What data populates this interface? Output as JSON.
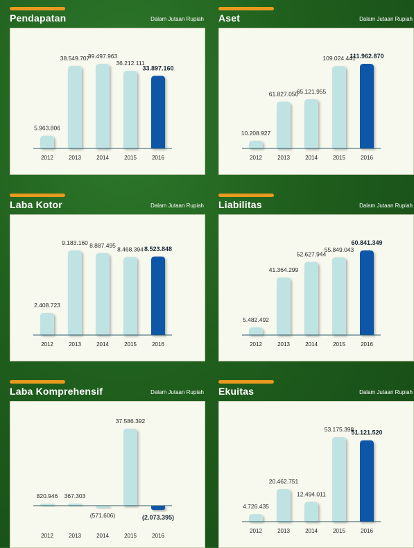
{
  "colors": {
    "accent": "#e89a1e",
    "bar": "#bfe3e3",
    "highlight": "#1157a8",
    "axis": "#2b5b6a"
  },
  "chart_data": [
    {
      "type": "bar",
      "title": "Pendapatan",
      "unit": "Dalam Jutaan Rupiah",
      "categories": [
        "2012",
        "2013",
        "2014",
        "2015",
        "2016"
      ],
      "values": [
        5963806,
        38549707,
        39497963,
        36212111,
        33897160
      ],
      "labels": [
        "5.963.806",
        "38.549.707",
        "39.497.963",
        "36.212.111",
        "33.897.160"
      ],
      "highlight": 4
    },
    {
      "type": "bar",
      "title": "Aset",
      "unit": "Dalam Jutaan Rupiah",
      "categories": [
        "2012",
        "2013",
        "2014",
        "2015",
        "2016"
      ],
      "values": [
        10208927,
        61827050,
        65121955,
        109024441,
        111962870
      ],
      "labels": [
        "10.208.927",
        "61.827.050",
        "65.121.955",
        "109.024.441",
        "111.962.870"
      ],
      "highlight": 4
    },
    {
      "type": "bar",
      "title": "Laba Kotor",
      "unit": "Dalam Jutaan Rupiah",
      "categories": [
        "2012",
        "2013",
        "2014",
        "2015",
        "2016"
      ],
      "values": [
        2408723,
        9183160,
        8887495,
        8468394,
        8523848
      ],
      "labels": [
        "2.408.723",
        "9.183.160",
        "8.887.495",
        "8.468.394",
        "8.523.848"
      ],
      "highlight": 4
    },
    {
      "type": "bar",
      "title": "Liabilitas",
      "unit": "Dalam Jutaan Rupiah",
      "categories": [
        "2012",
        "2013",
        "2014",
        "2015",
        "2016"
      ],
      "values": [
        5482492,
        41364299,
        52627944,
        55849043,
        60841349
      ],
      "labels": [
        "5.482.492",
        "41.364.299",
        "52.627.944",
        "55.849.043",
        "60.841.349"
      ],
      "highlight": 4
    },
    {
      "type": "bar",
      "title": "Laba Komprehensif",
      "unit": "Dalam Jutaan Rupiah",
      "categories": [
        "2012",
        "2013",
        "2014",
        "2015",
        "2016"
      ],
      "values": [
        820946,
        367303,
        -571606,
        37586392,
        -2073395
      ],
      "labels": [
        "820.946",
        "367.303",
        "(571.606)",
        "37.586.392",
        "(2.073.395)"
      ],
      "highlight": 4
    },
    {
      "type": "bar",
      "title": "Ekuitas",
      "unit": "Dalam Jutaan Rupiah",
      "categories": [
        "2012",
        "2013",
        "2014",
        "2015",
        "2016"
      ],
      "values": [
        4726435,
        20462751,
        12494011,
        53175398,
        51121520
      ],
      "labels": [
        "4.726.435",
        "20.462.751",
        "12.494.011",
        "53.175.398",
        "51.121.520"
      ],
      "highlight": 4
    }
  ]
}
